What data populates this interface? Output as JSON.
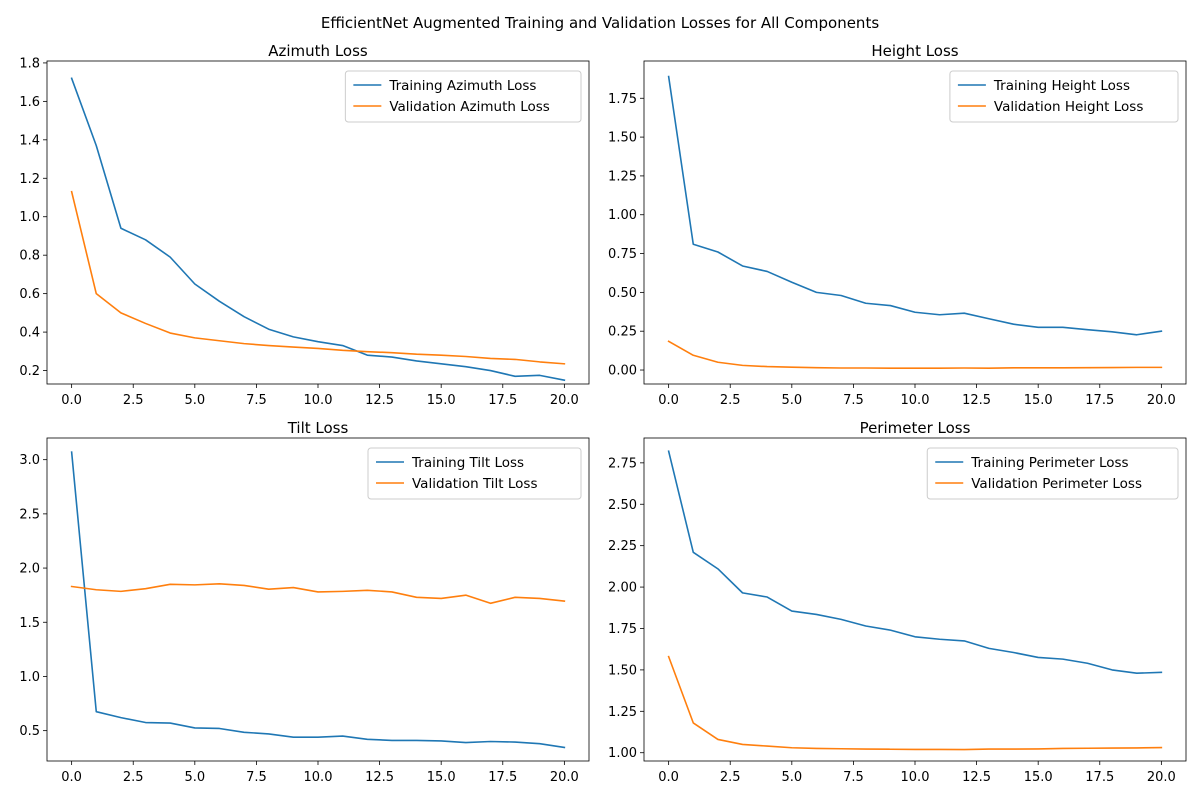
{
  "figure": {
    "title": "EfficientNet Augmented Training and Validation Losses for All Components"
  },
  "chart_data": [
    {
      "type": "line",
      "title": "Azimuth Loss",
      "xlim": [
        -1.0,
        21.0
      ],
      "ylim": [
        0.13,
        1.81
      ],
      "xticks": [
        0.0,
        2.5,
        5.0,
        7.5,
        10.0,
        12.5,
        15.0,
        17.5,
        20.0
      ],
      "xtick_labels": [
        "0.0",
        "2.5",
        "5.0",
        "7.5",
        "10.0",
        "12.5",
        "15.0",
        "17.5",
        "20.0"
      ],
      "yticks": [
        0.2,
        0.4,
        0.6,
        0.8,
        1.0,
        1.2,
        1.4,
        1.6,
        1.8
      ],
      "ytick_labels": [
        "0.2",
        "0.4",
        "0.6",
        "0.8",
        "1.0",
        "1.2",
        "1.4",
        "1.6",
        "1.8"
      ],
      "legend": "upper right",
      "x": [
        0,
        1,
        2,
        3,
        4,
        5,
        6,
        7,
        8,
        9,
        10,
        11,
        12,
        13,
        14,
        15,
        16,
        17,
        18,
        19,
        20
      ],
      "series": [
        {
          "name": "Training Azimuth Loss",
          "color": "#1f77b4",
          "values": [
            1.72,
            1.37,
            0.94,
            0.88,
            0.79,
            0.65,
            0.56,
            0.48,
            0.415,
            0.375,
            0.35,
            0.33,
            0.28,
            0.27,
            0.25,
            0.235,
            0.22,
            0.2,
            0.17,
            0.175,
            0.15
          ]
        },
        {
          "name": "Validation Azimuth Loss",
          "color": "#ff7f0e",
          "values": [
            1.13,
            0.6,
            0.5,
            0.445,
            0.395,
            0.37,
            0.355,
            0.34,
            0.33,
            0.322,
            0.315,
            0.305,
            0.298,
            0.293,
            0.285,
            0.28,
            0.273,
            0.263,
            0.258,
            0.245,
            0.235
          ]
        }
      ]
    },
    {
      "type": "line",
      "title": "Height Loss",
      "xlim": [
        -1.0,
        21.0
      ],
      "ylim": [
        -0.09,
        1.99
      ],
      "xticks": [
        0.0,
        2.5,
        5.0,
        7.5,
        10.0,
        12.5,
        15.0,
        17.5,
        20.0
      ],
      "xtick_labels": [
        "0.0",
        "2.5",
        "5.0",
        "7.5",
        "10.0",
        "12.5",
        "15.0",
        "17.5",
        "20.0"
      ],
      "yticks": [
        0.0,
        0.25,
        0.5,
        0.75,
        1.0,
        1.25,
        1.5,
        1.75
      ],
      "ytick_labels": [
        "0.00",
        "0.25",
        "0.50",
        "0.75",
        "1.00",
        "1.25",
        "1.50",
        "1.75"
      ],
      "legend": "upper right",
      "x": [
        0,
        1,
        2,
        3,
        4,
        5,
        6,
        7,
        8,
        9,
        10,
        11,
        12,
        13,
        14,
        15,
        16,
        17,
        18,
        19,
        20
      ],
      "series": [
        {
          "name": "Training Height Loss",
          "color": "#1f77b4",
          "values": [
            1.89,
            0.81,
            0.76,
            0.67,
            0.635,
            0.565,
            0.5,
            0.48,
            0.43,
            0.415,
            0.372,
            0.356,
            0.366,
            0.33,
            0.295,
            0.275,
            0.275,
            0.26,
            0.246,
            0.227,
            0.25
          ]
        },
        {
          "name": "Validation Height Loss",
          "color": "#ff7f0e",
          "values": [
            0.185,
            0.095,
            0.05,
            0.03,
            0.022,
            0.018,
            0.015,
            0.013,
            0.013,
            0.012,
            0.012,
            0.012,
            0.013,
            0.012,
            0.014,
            0.014,
            0.014,
            0.015,
            0.016,
            0.017,
            0.017
          ]
        }
      ]
    },
    {
      "type": "line",
      "title": "Tilt Loss",
      "xlim": [
        -1.0,
        21.0
      ],
      "ylim": [
        0.22,
        3.2
      ],
      "xticks": [
        0.0,
        2.5,
        5.0,
        7.5,
        10.0,
        12.5,
        15.0,
        17.5,
        20.0
      ],
      "xtick_labels": [
        "0.0",
        "2.5",
        "5.0",
        "7.5",
        "10.0",
        "12.5",
        "15.0",
        "17.5",
        "20.0"
      ],
      "yticks": [
        0.5,
        1.0,
        1.5,
        2.0,
        2.5,
        3.0
      ],
      "ytick_labels": [
        "0.5",
        "1.0",
        "1.5",
        "2.0",
        "2.5",
        "3.0"
      ],
      "legend": "upper right",
      "x": [
        0,
        1,
        2,
        3,
        4,
        5,
        6,
        7,
        8,
        9,
        10,
        11,
        12,
        13,
        14,
        15,
        16,
        17,
        18,
        19,
        20
      ],
      "series": [
        {
          "name": "Training Tilt Loss",
          "color": "#1f77b4",
          "values": [
            3.07,
            0.675,
            0.62,
            0.575,
            0.57,
            0.525,
            0.52,
            0.485,
            0.47,
            0.44,
            0.44,
            0.45,
            0.42,
            0.41,
            0.41,
            0.405,
            0.39,
            0.4,
            0.395,
            0.38,
            0.345
          ]
        },
        {
          "name": "Validation Tilt Loss",
          "color": "#ff7f0e",
          "values": [
            1.83,
            1.8,
            1.785,
            1.81,
            1.85,
            1.845,
            1.855,
            1.84,
            1.805,
            1.82,
            1.78,
            1.785,
            1.795,
            1.78,
            1.73,
            1.72,
            1.75,
            1.675,
            1.73,
            1.72,
            1.695
          ]
        }
      ]
    },
    {
      "type": "line",
      "title": "Perimeter Loss",
      "xlim": [
        -1.0,
        21.0
      ],
      "ylim": [
        0.95,
        2.9
      ],
      "xticks": [
        0.0,
        2.5,
        5.0,
        7.5,
        10.0,
        12.5,
        15.0,
        17.5,
        20.0
      ],
      "xtick_labels": [
        "0.0",
        "2.5",
        "5.0",
        "7.5",
        "10.0",
        "12.5",
        "15.0",
        "17.5",
        "20.0"
      ],
      "yticks": [
        1.0,
        1.25,
        1.5,
        1.75,
        2.0,
        2.25,
        2.5,
        2.75
      ],
      "ytick_labels": [
        "1.00",
        "1.25",
        "1.50",
        "1.75",
        "2.00",
        "2.25",
        "2.50",
        "2.75"
      ],
      "legend": "upper right",
      "x": [
        0,
        1,
        2,
        3,
        4,
        5,
        6,
        7,
        8,
        9,
        10,
        11,
        12,
        13,
        14,
        15,
        16,
        17,
        18,
        19,
        20
      ],
      "series": [
        {
          "name": "Training Perimeter Loss",
          "color": "#1f77b4",
          "values": [
            2.82,
            2.21,
            2.11,
            1.965,
            1.94,
            1.855,
            1.835,
            1.805,
            1.765,
            1.74,
            1.7,
            1.685,
            1.675,
            1.63,
            1.605,
            1.575,
            1.565,
            1.54,
            1.5,
            1.48,
            1.485
          ]
        },
        {
          "name": "Validation Perimeter Loss",
          "color": "#ff7f0e",
          "values": [
            1.58,
            1.18,
            1.08,
            1.05,
            1.04,
            1.03,
            1.026,
            1.024,
            1.022,
            1.021,
            1.02,
            1.02,
            1.019,
            1.022,
            1.022,
            1.023,
            1.026,
            1.027,
            1.028,
            1.029,
            1.031
          ]
        }
      ]
    }
  ]
}
